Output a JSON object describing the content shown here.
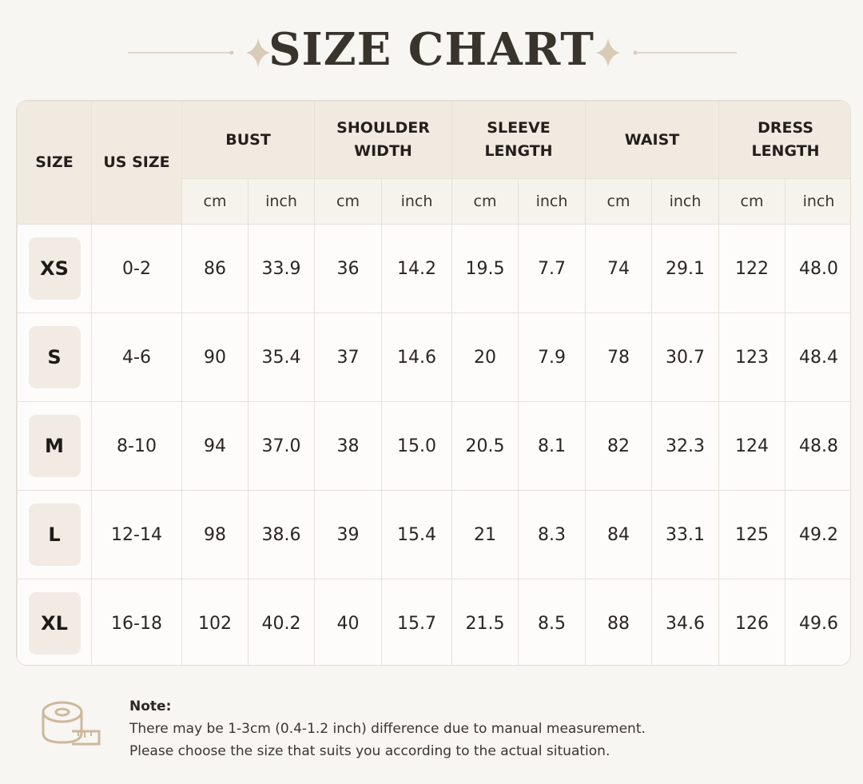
{
  "title": "SIZE CHART",
  "table": {
    "fixed_headers": [
      "SIZE",
      "US SIZE"
    ],
    "group_headers": [
      "BUST",
      "SHOULDER WIDTH",
      "SLEEVE LENGTH",
      "WAIST",
      "DRESS LENGTH"
    ],
    "unit_row": [
      "cm",
      "inch",
      "cm",
      "inch",
      "cm",
      "inch",
      "cm",
      "inch",
      "cm",
      "inch"
    ],
    "rows": [
      [
        "XS",
        "0-2",
        "86",
        "33.9",
        "36",
        "14.2",
        "19.5",
        "7.7",
        "74",
        "29.1",
        "122",
        "48.0"
      ],
      [
        "S",
        "4-6",
        "90",
        "35.4",
        "37",
        "14.6",
        "20",
        "7.9",
        "78",
        "30.7",
        "123",
        "48.4"
      ],
      [
        "M",
        "8-10",
        "94",
        "37.0",
        "38",
        "15.0",
        "20.5",
        "8.1",
        "82",
        "32.3",
        "124",
        "48.8"
      ],
      [
        "L",
        "12-14",
        "98",
        "38.6",
        "39",
        "15.4",
        "21",
        "8.3",
        "84",
        "33.1",
        "125",
        "49.2"
      ],
      [
        "XL",
        "16-18",
        "102",
        "40.2",
        "40",
        "15.7",
        "21.5",
        "8.5",
        "88",
        "34.6",
        "126",
        "49.6"
      ]
    ]
  },
  "note": {
    "label": "Note:",
    "lines": [
      "There may be 1-3cm (0.4-1.2 inch) difference due to manual measurement.",
      "Please choose the size that suits you according to the actual situation."
    ]
  }
}
